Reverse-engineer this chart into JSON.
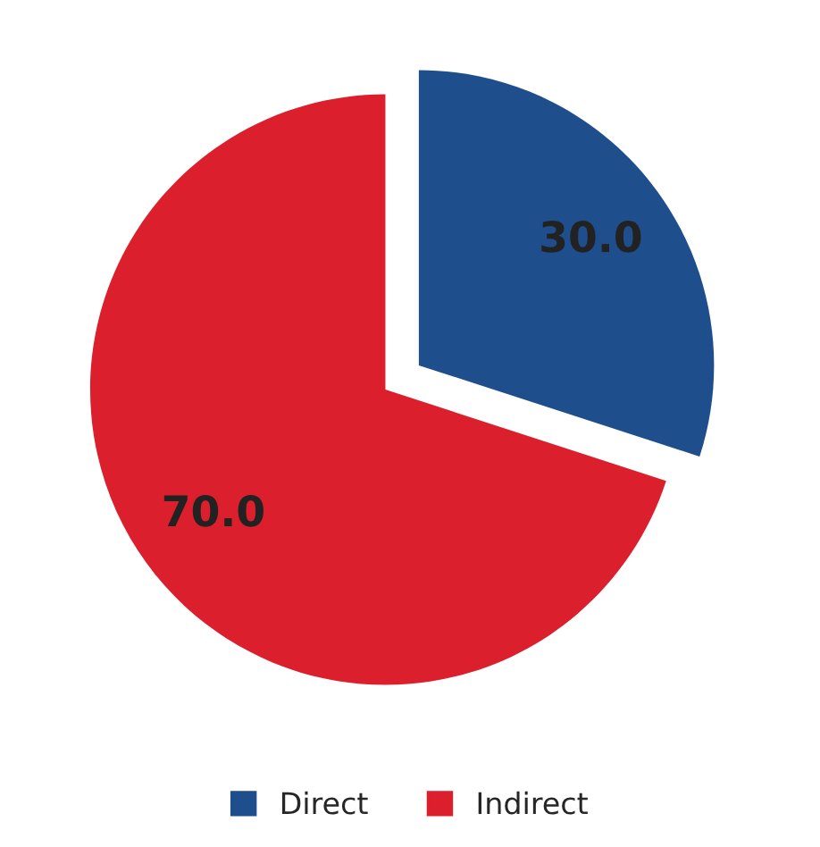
{
  "chart_data": {
    "type": "pie",
    "categories": [
      "Direct",
      "Indirect"
    ],
    "values": [
      30,
      70
    ],
    "value_labels": [
      "30.0",
      "70.0"
    ],
    "colors": [
      "#1f4e8c",
      "#dc1f2d"
    ],
    "legend": "bottom"
  }
}
